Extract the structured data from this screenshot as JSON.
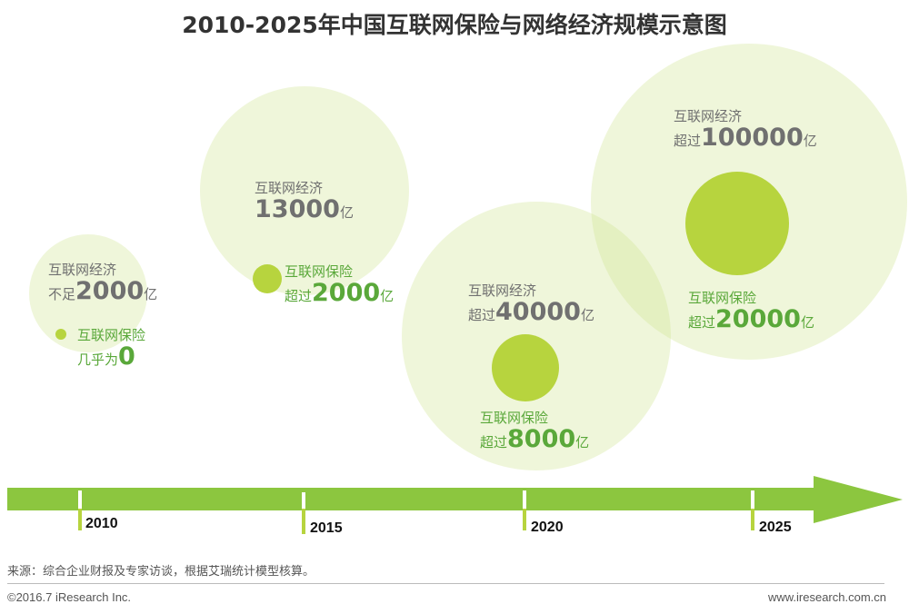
{
  "title": "2010-2025年中国互联网保险与网络经济规模示意图",
  "colors": {
    "arrow": "#8cc63f",
    "big_circle": "#eef4d4",
    "small_circle": "#b7d43e",
    "economy_text": "#707070",
    "insurance_text": "#5aa83a"
  },
  "periods": [
    {
      "year": "2010",
      "economy_label": "互联网经济",
      "economy_prefix": "不足",
      "economy_value": "2000",
      "economy_unit": "亿",
      "insurance_label": "互联网保险",
      "insurance_prefix": "几乎为",
      "insurance_value": "0",
      "insurance_unit": ""
    },
    {
      "year": "2015",
      "economy_label": "互联网经济",
      "economy_prefix": "",
      "economy_value": "13000",
      "economy_unit": "亿",
      "insurance_label": "互联网保险",
      "insurance_prefix": "超过",
      "insurance_value": "2000",
      "insurance_unit": "亿"
    },
    {
      "year": "2020",
      "economy_label": "互联网经济",
      "economy_prefix": "超过",
      "economy_value": "40000",
      "economy_unit": "亿",
      "insurance_label": "互联网保险",
      "insurance_prefix": "超过",
      "insurance_value": "8000",
      "insurance_unit": "亿"
    },
    {
      "year": "2025",
      "economy_label": "互联网经济",
      "economy_prefix": "超过",
      "economy_value": "100000",
      "economy_unit": "亿",
      "insurance_label": "互联网保险",
      "insurance_prefix": "超过",
      "insurance_value": "20000",
      "insurance_unit": "亿"
    }
  ],
  "source": "来源：综合企业财报及专家访谈，根据艾瑞统计模型核算。",
  "copyright": "©2016.7 iResearch Inc.",
  "website": "www.iresearch.com.cn"
}
